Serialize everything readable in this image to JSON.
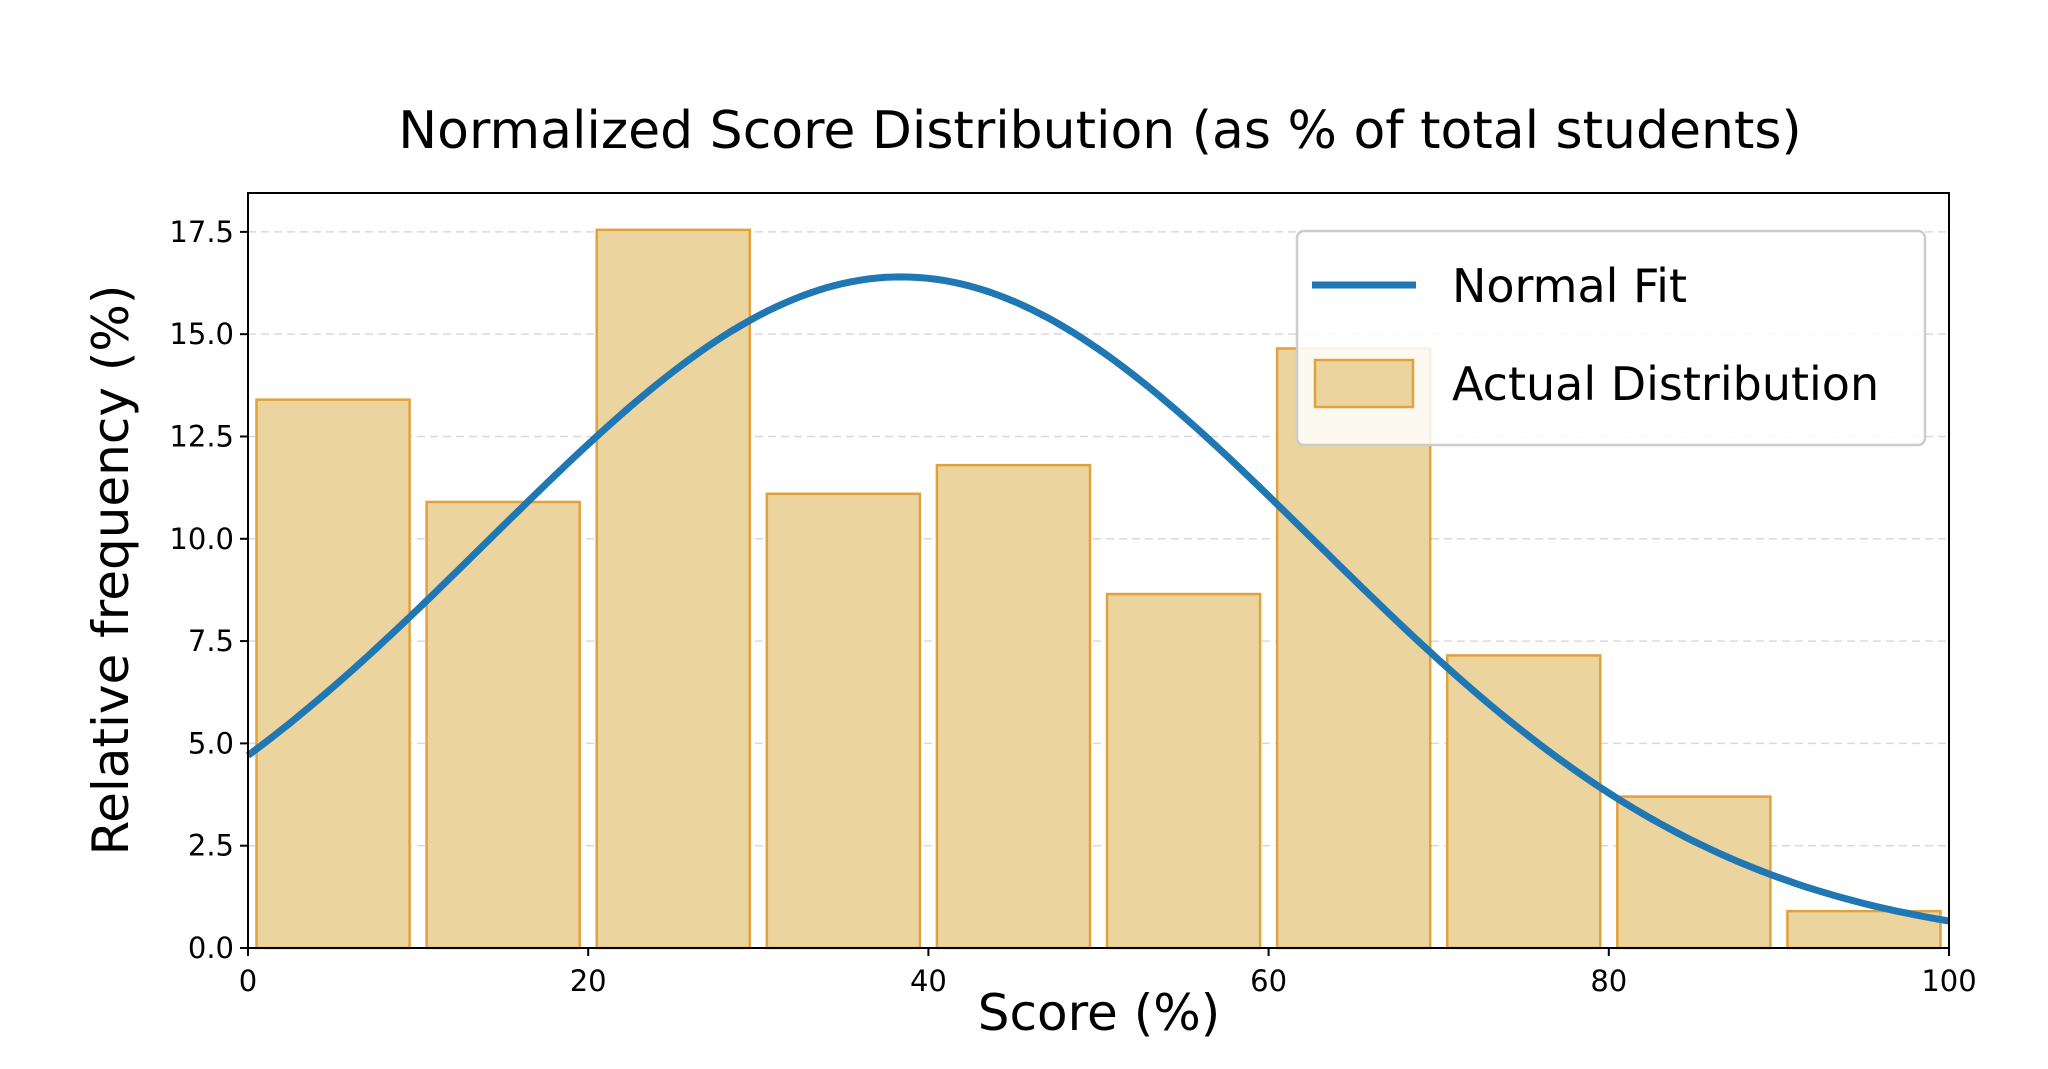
{
  "chart_data": {
    "type": "bar",
    "title": "Normalized Score Distribution (as % of total students)",
    "xlabel": "Score (%)",
    "ylabel": "Relative frequency (%)",
    "xlim": [
      0,
      100
    ],
    "ylim": [
      0,
      18.45
    ],
    "x_ticks": [
      "0",
      "20",
      "40",
      "60",
      "80",
      "100"
    ],
    "y_ticks": [
      "0.0",
      "2.5",
      "5.0",
      "7.5",
      "10.0",
      "12.5",
      "15.0",
      "17.5"
    ],
    "grid": "horizontal dashed",
    "legend_position": "top-right",
    "bins": [
      [
        0,
        10
      ],
      [
        10,
        20
      ],
      [
        20,
        30
      ],
      [
        30,
        40
      ],
      [
        40,
        50
      ],
      [
        50,
        60
      ],
      [
        60,
        70
      ],
      [
        70,
        80
      ],
      [
        80,
        90
      ],
      [
        90,
        100
      ]
    ],
    "series": [
      {
        "name": "Actual Distribution",
        "type": "bar",
        "values": [
          13.4,
          10.9,
          17.55,
          11.1,
          11.8,
          8.65,
          14.65,
          7.15,
          3.7,
          0.9
        ],
        "color": "#ecd49f",
        "edge_color": "#e0a23c"
      },
      {
        "name": "Normal Fit",
        "type": "line",
        "mean": 38.4,
        "std": 24.3,
        "peak": 16.4,
        "color": "#1f77b4"
      }
    ]
  }
}
